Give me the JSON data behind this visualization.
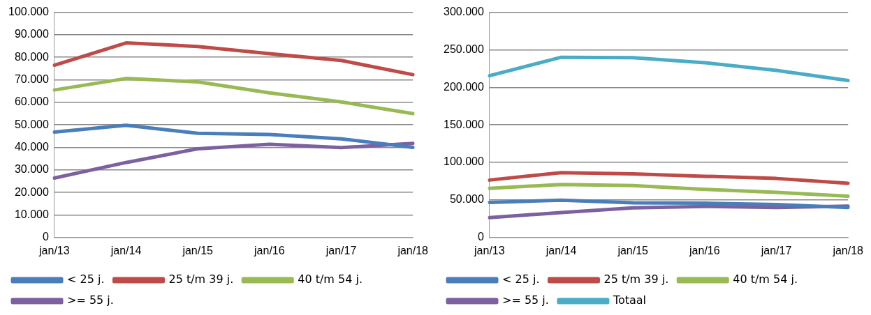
{
  "chart_data": [
    {
      "type": "line",
      "categories": [
        "jan/13",
        "jan/14",
        "jan/15",
        "jan/16",
        "jan/17",
        "jan/18"
      ],
      "series": [
        {
          "name": "< 25 j.",
          "color": "#4a7ebb",
          "values": [
            46800,
            49800,
            46300,
            45700,
            43800,
            40000
          ]
        },
        {
          "name": "25 t/m 39 j.",
          "color": "#be4b48",
          "values": [
            76500,
            86400,
            84800,
            81600,
            78600,
            72300
          ]
        },
        {
          "name": "40 t/m 54 j.",
          "color": "#98b954",
          "values": [
            65500,
            70600,
            69100,
            64200,
            60200,
            55000
          ]
        },
        {
          "name": ">= 55 j.",
          "color": "#7d60a0",
          "values": [
            26400,
            33300,
            39400,
            41400,
            39900,
            41800
          ]
        }
      ],
      "ylim": [
        0,
        100000
      ],
      "yticks": [
        {
          "value": 0,
          "label": "0"
        },
        {
          "value": 10000,
          "label": "10.000"
        },
        {
          "value": 20000,
          "label": "20.000"
        },
        {
          "value": 30000,
          "label": "30.000"
        },
        {
          "value": 40000,
          "label": "40.000"
        },
        {
          "value": 50000,
          "label": "50.000"
        },
        {
          "value": 60000,
          "label": "60.000"
        },
        {
          "value": 70000,
          "label": "70.000"
        },
        {
          "value": 80000,
          "label": "80.000"
        },
        {
          "value": 90000,
          "label": "90.000"
        },
        {
          "value": 100000,
          "label": "100.000"
        }
      ],
      "grid": "y",
      "legend": "bottom",
      "marker": "none",
      "line_style": "solid"
    },
    {
      "type": "line",
      "categories": [
        "jan/13",
        "jan/14",
        "jan/15",
        "jan/16",
        "jan/17",
        "jan/18"
      ],
      "series": [
        {
          "name": "< 25 j.",
          "color": "#4a7ebb",
          "values": [
            46800,
            49800,
            46300,
            45700,
            43800,
            40000
          ]
        },
        {
          "name": "25 t/m 39 j.",
          "color": "#be4b48",
          "values": [
            76500,
            86400,
            84800,
            81600,
            78600,
            72300
          ]
        },
        {
          "name": "40 t/m 54 j.",
          "color": "#98b954",
          "values": [
            65500,
            70600,
            69100,
            64200,
            60200,
            55000
          ]
        },
        {
          "name": ">= 55 j.",
          "color": "#7d60a0",
          "values": [
            26400,
            33300,
            39400,
            41400,
            39900,
            41800
          ]
        },
        {
          "name": "Totaal",
          "color": "#4bacc6",
          "values": [
            215500,
            240100,
            239600,
            232900,
            222500,
            209100
          ]
        }
      ],
      "ylim": [
        0,
        300000
      ],
      "yticks": [
        {
          "value": 0,
          "label": "0"
        },
        {
          "value": 50000,
          "label": "50.000"
        },
        {
          "value": 100000,
          "label": "100.000"
        },
        {
          "value": 150000,
          "label": "150.000"
        },
        {
          "value": 200000,
          "label": "200.000"
        },
        {
          "value": 250000,
          "label": "250.000"
        },
        {
          "value": 300000,
          "label": "300.000"
        }
      ],
      "grid": "y",
      "legend": "bottom",
      "marker": "none",
      "line_style": "solid"
    }
  ]
}
